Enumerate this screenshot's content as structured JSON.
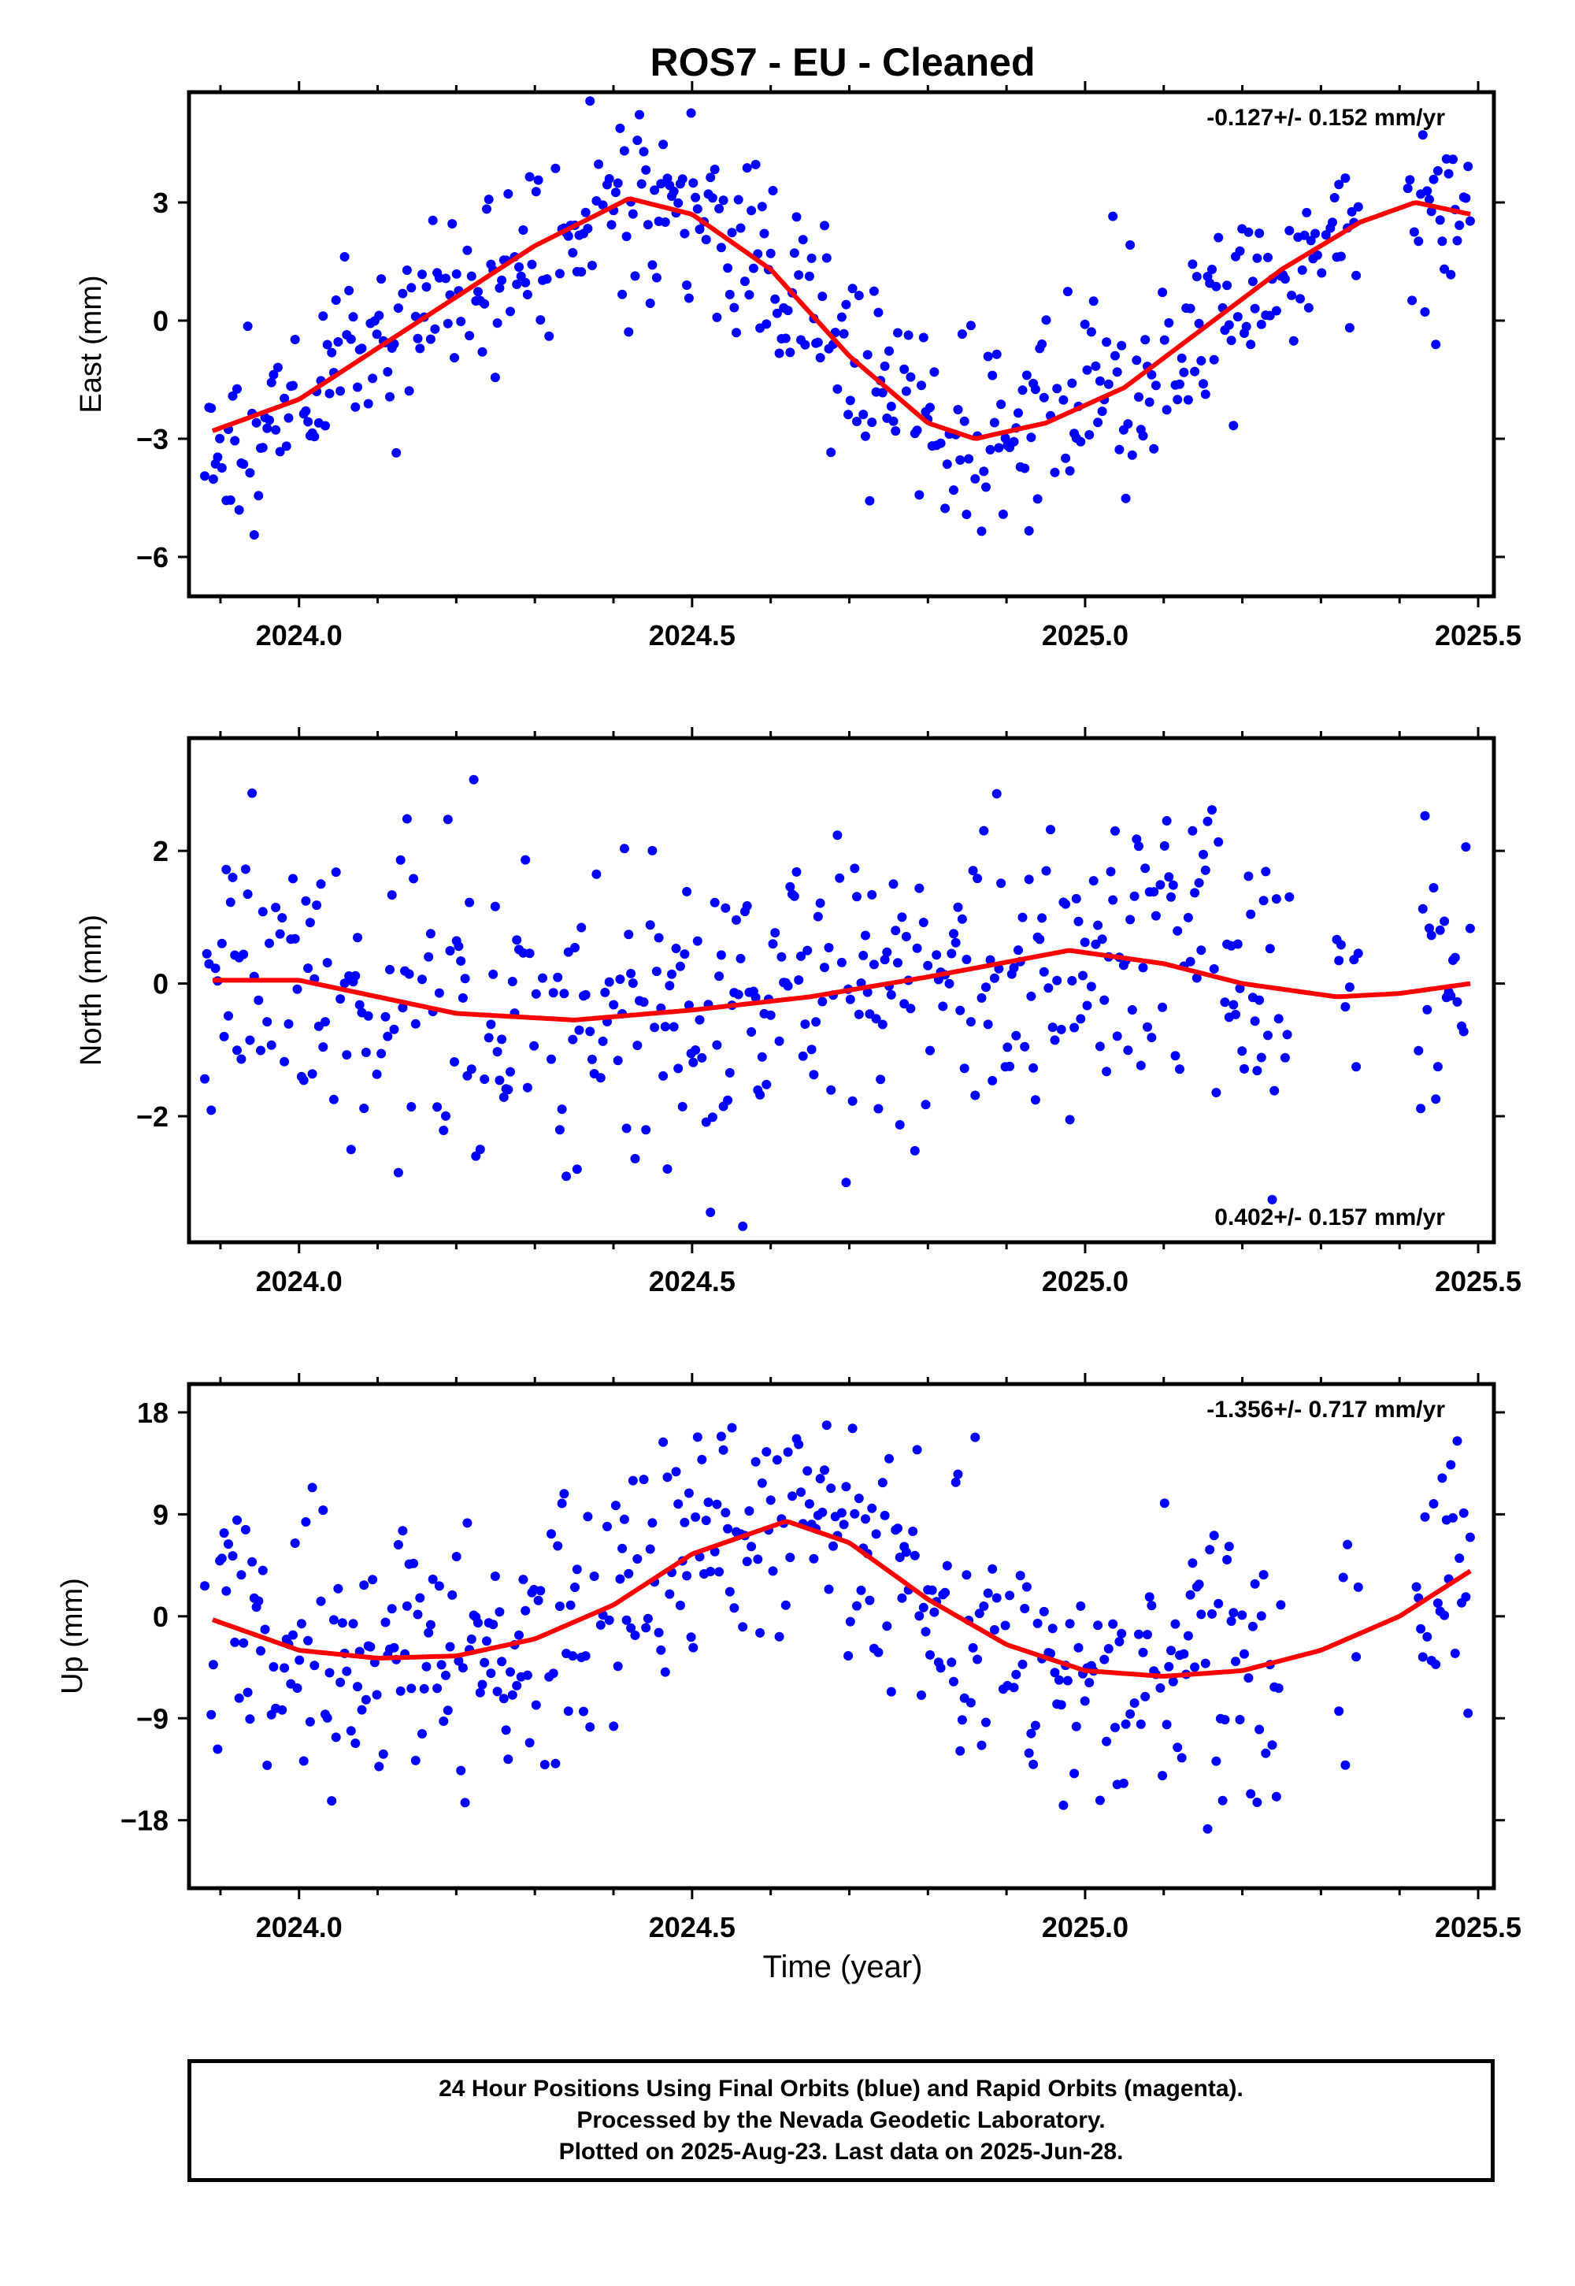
{
  "title": "ROS7  - EU - Cleaned",
  "xlabel": "Time (year)",
  "footer": {
    "line1": "24 Hour Positions Using Final Orbits (blue) and Rapid Orbits (magenta).",
    "line2": "Processed by the Nevada Geodetic Laboratory.",
    "line3": "Plotted on 2025-Aug-23. Last data on 2025-Jun-28."
  },
  "colors": {
    "points": "#0000ff",
    "fit": "#ff0000",
    "axes": "#000000"
  },
  "chart_data": [
    {
      "type": "scatter",
      "ylabel": "East (mm)",
      "rate_text": "-0.127+/- 0.152 mm/yr",
      "rate_position": "top-right",
      "xlim": [
        2023.86,
        2025.52
      ],
      "ylim": [
        -7.0,
        5.8
      ],
      "xticks": [
        2024.0,
        2024.5,
        2025.0,
        2025.5
      ],
      "xtick_labels": [
        "2024.0",
        "2024.5",
        "2025.0",
        "2025.5"
      ],
      "yticks": [
        -6,
        -3,
        0,
        3
      ],
      "ytick_labels": [
        "−6",
        "−3",
        "0",
        "3"
      ],
      "grid": false,
      "fit": {
        "x": [
          2023.89,
          2024.0,
          2024.1,
          2024.2,
          2024.3,
          2024.42,
          2024.5,
          2024.6,
          2024.7,
          2024.8,
          2024.86,
          2024.95,
          2025.05,
          2025.15,
          2025.25,
          2025.35,
          2025.42,
          2025.49
        ],
        "y": [
          -2.8,
          -2.0,
          -0.7,
          0.6,
          1.9,
          3.1,
          2.7,
          1.3,
          -0.9,
          -2.6,
          -3.0,
          -2.6,
          -1.7,
          -0.2,
          1.3,
          2.5,
          3.0,
          2.7
        ]
      },
      "points": {
        "period": 1.0,
        "phase": 0.3,
        "amplitude": 3.0,
        "rate": -0.127,
        "noise": 1.2,
        "x_start": 2023.88,
        "x_end": 2025.49,
        "seed": 11,
        "gaps": [
          [
            2025.35,
            2025.41
          ]
        ]
      }
    },
    {
      "type": "scatter",
      "ylabel": "North (mm)",
      "rate_text": "0.402+/- 0.157 mm/yr",
      "rate_position": "bottom-right",
      "xlim": [
        2023.86,
        2025.52
      ],
      "ylim": [
        -3.9,
        3.7
      ],
      "xticks": [
        2024.0,
        2024.5,
        2025.0,
        2025.5
      ],
      "xtick_labels": [
        "2024.0",
        "2024.5",
        "2025.0",
        "2025.5"
      ],
      "yticks": [
        -2,
        0,
        2
      ],
      "ytick_labels": [
        "−2",
        "0",
        "2"
      ],
      "grid": false,
      "fit": {
        "x": [
          2023.89,
          2024.0,
          2024.1,
          2024.2,
          2024.35,
          2024.5,
          2024.65,
          2024.8,
          2024.98,
          2025.1,
          2025.2,
          2025.32,
          2025.4,
          2025.49
        ],
        "y": [
          0.05,
          0.05,
          -0.2,
          -0.45,
          -0.55,
          -0.4,
          -0.2,
          0.1,
          0.5,
          0.3,
          0.0,
          -0.2,
          -0.15,
          0.0
        ]
      },
      "points": {
        "period": 1.0,
        "phase": 0.0,
        "amplitude": 0.5,
        "rate": 0.402,
        "noise": 1.15,
        "x_start": 2023.88,
        "x_end": 2025.49,
        "seed": 23,
        "gaps": [
          [
            2025.26,
            2025.32
          ],
          [
            2025.35,
            2025.42
          ]
        ]
      }
    },
    {
      "type": "scatter",
      "ylabel": "Up (mm)",
      "rate_text": "-1.356+/- 0.717 mm/yr",
      "rate_position": "top-right",
      "xlim": [
        2023.86,
        2025.52
      ],
      "ylim": [
        -24.0,
        20.5
      ],
      "xticks": [
        2024.0,
        2024.5,
        2025.0,
        2025.5
      ],
      "xtick_labels": [
        "2024.0",
        "2024.5",
        "2025.0",
        "2025.5"
      ],
      "yticks": [
        -18,
        -9,
        0,
        9,
        18
      ],
      "ytick_labels": [
        "−18",
        "−9",
        "0",
        "9",
        "18"
      ],
      "grid": false,
      "fit": {
        "x": [
          2023.89,
          2024.0,
          2024.1,
          2024.2,
          2024.3,
          2024.4,
          2024.5,
          2024.62,
          2024.7,
          2024.8,
          2024.9,
          2025.0,
          2025.1,
          2025.2,
          2025.3,
          2025.4,
          2025.49
        ],
        "y": [
          -0.3,
          -3.0,
          -3.7,
          -3.5,
          -2.0,
          1.0,
          5.5,
          8.4,
          6.5,
          1.5,
          -2.5,
          -4.8,
          -5.3,
          -4.8,
          -3.0,
          0.0,
          4.0
        ]
      },
      "points": {
        "period": 1.0,
        "phase": 0.38,
        "amplitude": 6.5,
        "rate": -1.356,
        "noise": 5.5,
        "x_start": 2023.88,
        "x_end": 2025.49,
        "seed": 37,
        "gaps": [
          [
            2025.25,
            2025.32
          ],
          [
            2025.35,
            2025.42
          ]
        ]
      }
    }
  ]
}
